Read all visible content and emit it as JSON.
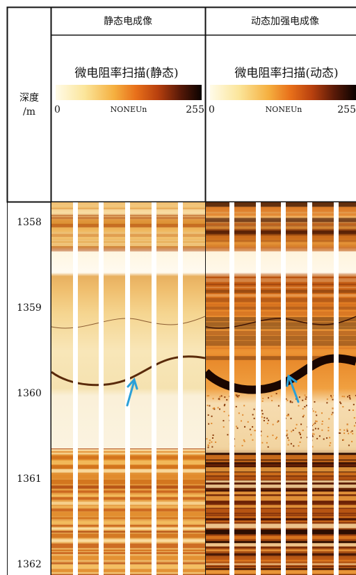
{
  "depth_column": {
    "label": "深度",
    "unit": "/m"
  },
  "tracks": [
    {
      "title": "静态电成像",
      "scale_title": "微电阻率扫描(静态)",
      "scale_min": 0,
      "scale_unit": "NONEUn",
      "scale_max": 255
    },
    {
      "title": "动态加强电成像",
      "scale_title": "微电阻率扫描(动态)",
      "scale_min": 0,
      "scale_unit": "NONEUn",
      "scale_max": 255
    }
  ],
  "depths": [
    1358,
    1359,
    1360,
    1361,
    1362
  ]
}
